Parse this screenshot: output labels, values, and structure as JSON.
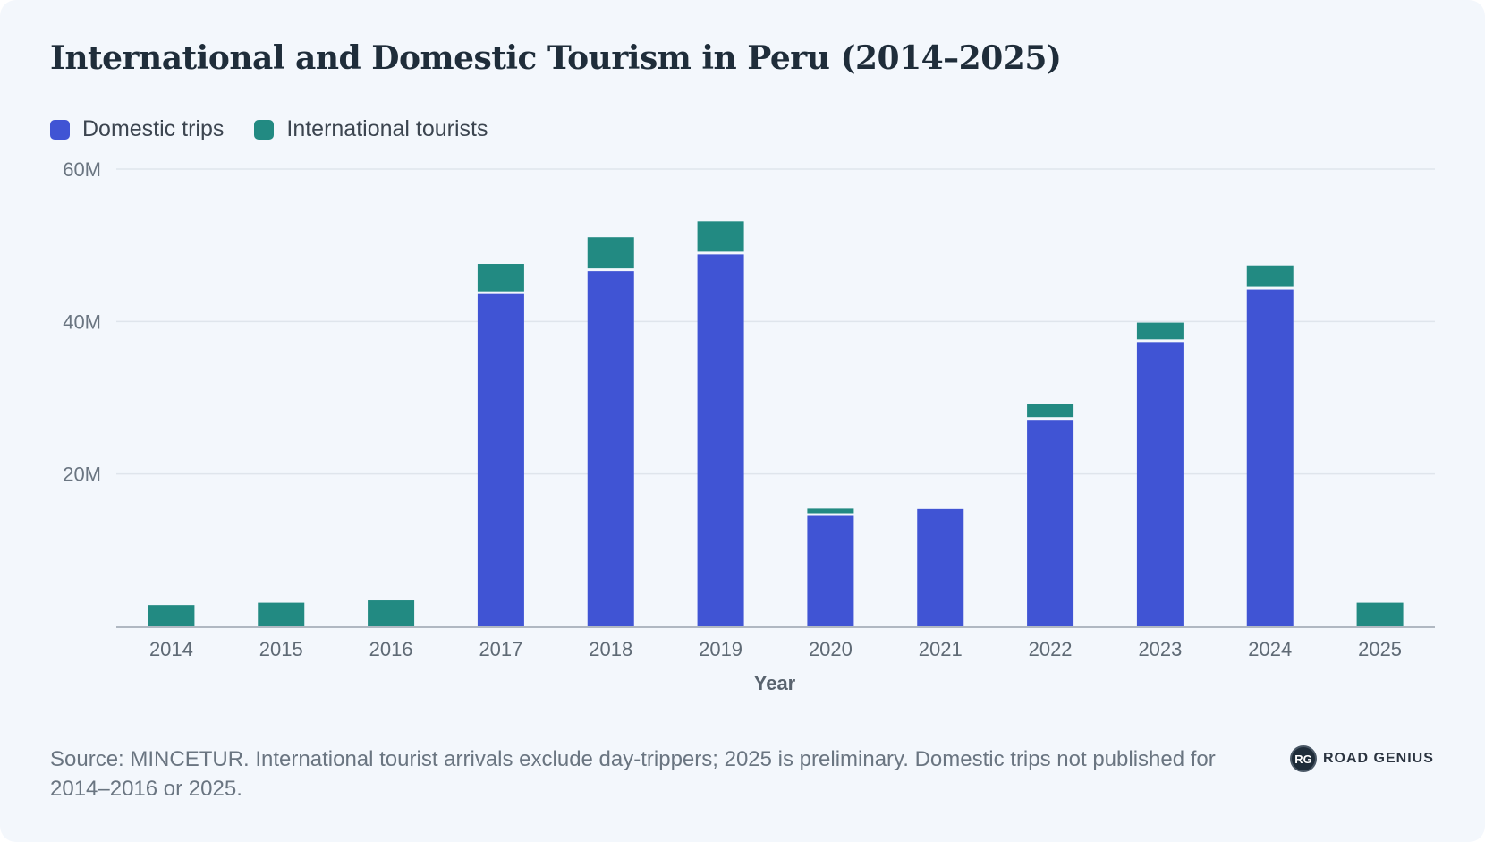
{
  "title": "International and Domestic Tourism in Peru (2014–2025)",
  "legend": [
    {
      "label": "Domestic trips",
      "color": "#4054d4"
    },
    {
      "label": "International tourists",
      "color": "#228a82"
    }
  ],
  "chart_data": {
    "type": "bar",
    "stacked": true,
    "categories": [
      "2014",
      "2015",
      "2016",
      "2017",
      "2018",
      "2019",
      "2020",
      "2021",
      "2022",
      "2023",
      "2024",
      "2025"
    ],
    "series": [
      {
        "name": "Domestic trips",
        "color": "#4054d4",
        "values": [
          null,
          null,
          null,
          43.6,
          46.6,
          48.8,
          14.5,
          15.4,
          27.1,
          37.3,
          44.2,
          null
        ]
      },
      {
        "name": "International tourists",
        "color": "#228a82",
        "values": [
          2.8,
          3.1,
          3.4,
          3.6,
          4.1,
          4.0,
          0.6,
          0.0,
          1.7,
          2.2,
          2.8,
          3.1
        ]
      }
    ],
    "xlabel": "Year",
    "ylabel": "",
    "ylim": [
      0,
      60
    ],
    "yticks": [
      20,
      40,
      60
    ],
    "ytick_labels": [
      "20M",
      "40M",
      "60M"
    ],
    "grid": true,
    "legend_position": "top-left"
  },
  "source": "Source: MINCETUR. International tourist arrivals exclude day-trippers; 2025 is preliminary. Domestic trips not published for 2014–2016 or 2025.",
  "brand": {
    "badge": "RG",
    "name": "ROAD GENIUS"
  }
}
